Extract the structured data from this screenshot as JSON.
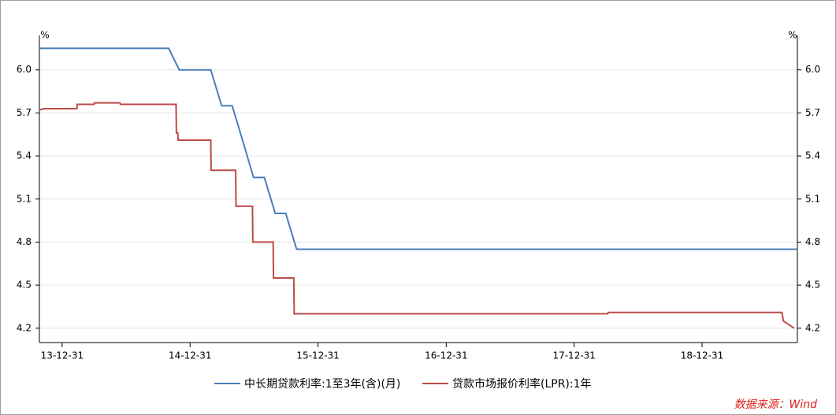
{
  "chart_data": {
    "type": "line",
    "y_unit": "%",
    "y2_unit": "%",
    "source": "数据来源：Wind",
    "xlim": [
      "2013-10-27",
      "2019-09-29"
    ],
    "xticks": [
      {
        "value": "2013-12-31",
        "label": "13-12-31"
      },
      {
        "value": "2014-12-31",
        "label": "14-12-31"
      },
      {
        "value": "2015-12-31",
        "label": "15-12-31"
      },
      {
        "value": "2016-12-31",
        "label": "16-12-31"
      },
      {
        "value": "2017-12-31",
        "label": "17-12-31"
      },
      {
        "value": "2018-12-31",
        "label": "18-12-31"
      }
    ],
    "ylim": [
      4.1,
      6.24
    ],
    "yticks": [
      4.2,
      4.5,
      4.8,
      5.1,
      5.4,
      5.7,
      {
        "value": 6,
        "label": "6.0"
      }
    ],
    "y2lim": [
      4.1,
      6.24
    ],
    "y2ticks": [
      4.2,
      4.5,
      4.8,
      5.1,
      5.4,
      5.7,
      {
        "value": 6,
        "label": "6.0"
      }
    ],
    "grid": true,
    "series": [
      {
        "name": "中长期贷款利率:1至3年(含)(月)",
        "color": "#4a7ebb",
        "x": [
          "2013-10-27",
          "2014-10-31",
          "2014-11-30",
          "2015-02-28",
          "2015-03-31",
          "2015-04-30",
          "2015-05-31",
          "2015-06-30",
          "2015-07-31",
          "2015-08-31",
          "2015-09-30",
          "2015-10-31",
          "2019-09-29"
        ],
        "values": [
          6.15,
          6.15,
          6.0,
          6.0,
          5.75,
          5.75,
          5.5,
          5.25,
          5.25,
          5.0,
          5.0,
          4.75,
          4.75
        ]
      },
      {
        "name": "贷款市场报价利率(LPR):1年",
        "color": "#be4b48",
        "x": [
          "2013-10-27",
          "2013-11-08",
          "2014-02-11",
          "2014-02-12",
          "2014-04-01",
          "2014-04-02",
          "2014-06-14",
          "2014-06-15",
          "2014-11-21",
          "2014-11-22",
          "2014-11-26",
          "2014-11-27",
          "2015-02-28",
          "2015-03-01",
          "2015-05-10",
          "2015-05-11",
          "2015-06-27",
          "2015-06-28",
          "2015-08-25",
          "2015-08-26",
          "2015-10-23",
          "2015-10-24",
          "2018-04-06",
          "2018-04-07",
          "2019-08-16",
          "2019-08-20",
          "2019-09-20"
        ],
        "values": [
          5.72,
          5.73,
          5.73,
          5.76,
          5.76,
          5.77,
          5.77,
          5.76,
          5.76,
          5.56,
          5.56,
          5.51,
          5.51,
          5.3,
          5.3,
          5.05,
          5.05,
          4.8,
          4.8,
          4.55,
          4.55,
          4.3,
          4.3,
          4.31,
          4.31,
          4.25,
          4.2
        ]
      }
    ]
  }
}
